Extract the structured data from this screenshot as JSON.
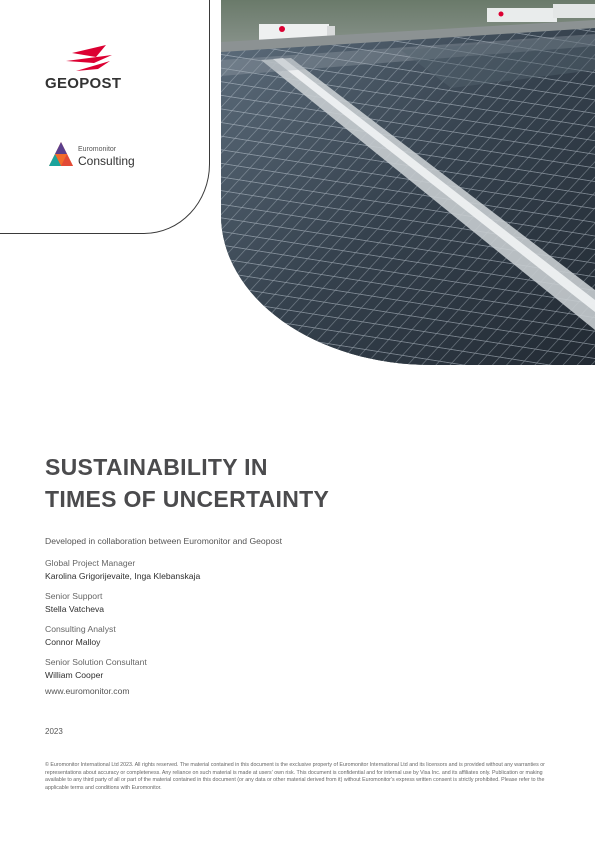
{
  "header": {
    "geopost_logo_text": "GEOPOST",
    "euromonitor_small": "Euromonitor",
    "euromonitor_big": "Consulting"
  },
  "title": {
    "line1": "SUSTAINABILITY IN",
    "line2": "TIMES OF UNCERTAINTY"
  },
  "intro": "Developed in collaboration between Euromonitor and Geopost",
  "credits": [
    {
      "role": "Global Project Manager",
      "name": "Karolina Grigorijevaite, Inga Klebanskaja"
    },
    {
      "role": "Senior Support",
      "name": "Stella Vatcheva"
    },
    {
      "role": "Consulting Analyst",
      "name": "Connor Malloy"
    },
    {
      "role": "Senior Solution Consultant",
      "name": "William Cooper"
    }
  ],
  "website": "www.euromonitor.com",
  "year": "2023",
  "legal": "© Euromonitor International Ltd 2023. All rights reserved. The material contained in this document is the exclusive property of Euromonitor International Ltd and its licensors and is provided without any warranties or representations about accuracy or completeness. Any reliance on such material is made at users' own risk. This document is confidential and for internal use by Visa Inc. and its affiliates only. Publication or making available to any third party of all or part of the material contained in this document (or any data or other material derived from it) without Euromonitor's express written consent is strictly prohibited. Please refer to the applicable terms and conditions with Euromonitor.",
  "colors": {
    "geopost_red": "#dc0032",
    "euro_orange": "#f26b2a",
    "euro_purple": "#5b3f8c",
    "euro_teal": "#1ba39c",
    "title_gray": "#4b4b4d"
  }
}
